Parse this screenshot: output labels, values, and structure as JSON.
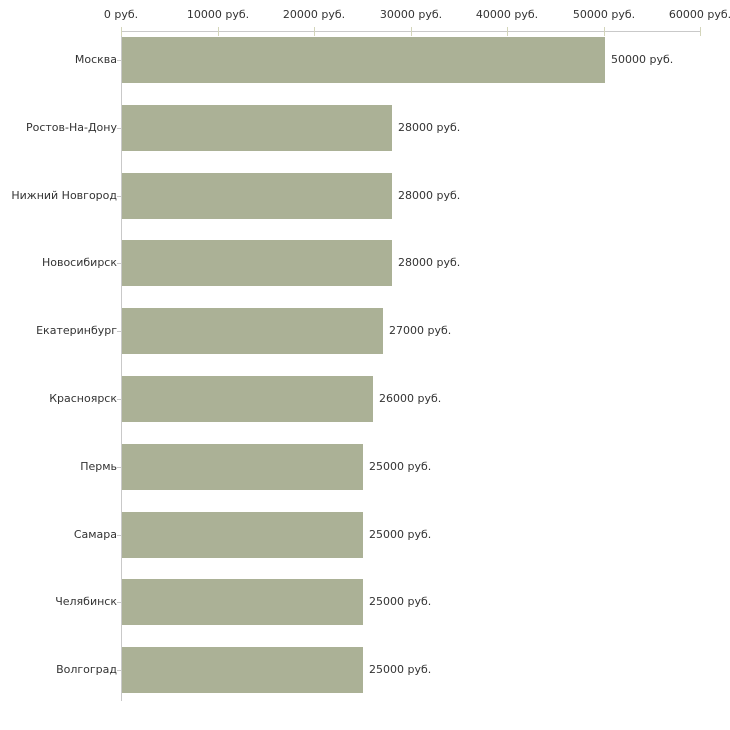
{
  "chart_data": {
    "type": "bar",
    "orientation": "horizontal",
    "title": "",
    "categories": [
      "Москва",
      "Ростов-На-Дону",
      "Нижний Новгород",
      "Новосибирск",
      "Екатеринбург",
      "Красноярск",
      "Пермь",
      "Самара",
      "Челябинск",
      "Волгоград"
    ],
    "values": [
      50000,
      28000,
      28000,
      28000,
      27000,
      26000,
      25000,
      25000,
      25000,
      25000
    ],
    "value_labels": [
      "50000 руб.",
      "28000 руб.",
      "28000 руб.",
      "28000 руб.",
      "27000 руб.",
      "26000 руб.",
      "25000 руб.",
      "25000 руб.",
      "25000 руб.",
      "25000 руб."
    ],
    "xlabel": "",
    "ylabel": "",
    "x_axis": {
      "position": "top",
      "xlim": [
        0,
        60000
      ],
      "ticks": [
        0,
        10000,
        20000,
        30000,
        40000,
        50000,
        60000
      ],
      "tick_labels": [
        "0 руб.",
        "10000 руб.",
        "20000 руб.",
        "30000 руб.",
        "40000 руб.",
        "50000 руб.",
        "60000 руб."
      ]
    },
    "legend": null,
    "grid": false,
    "colors": {
      "bar": "#abb196",
      "axis_line": "#c9c9c9",
      "axis_tick": "#d3d5ba",
      "category_tick": "#c8c8c8",
      "text": "#333333",
      "background": "#ffffff"
    }
  }
}
